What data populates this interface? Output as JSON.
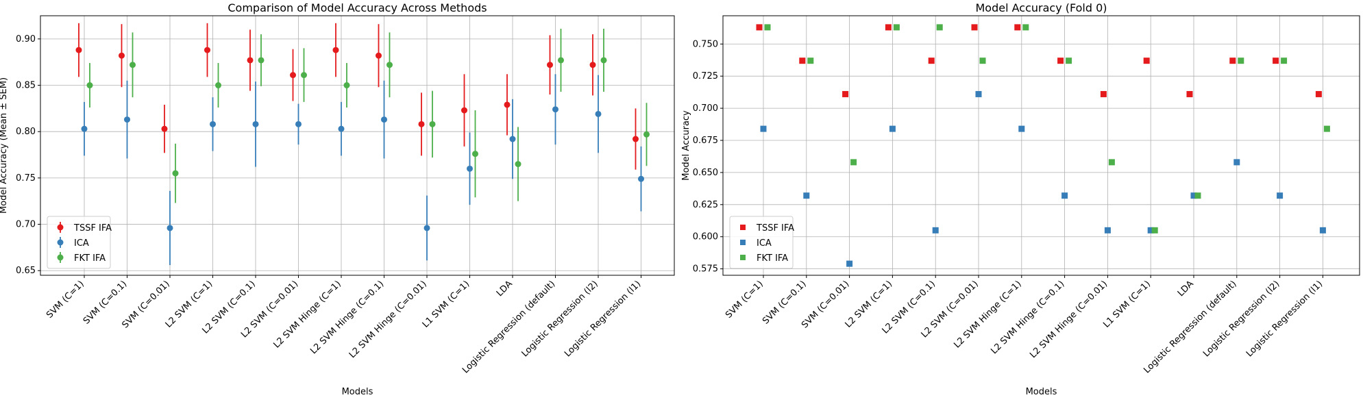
{
  "chart_data": [
    {
      "type": "scatter",
      "title": "Comparison of Model Accuracy Across Methods",
      "xlabel": "Models",
      "ylabel": "Model Accuracy (Mean ± SEM)",
      "ylim": [
        0.645,
        0.925
      ],
      "yticks": [
        0.65,
        0.7,
        0.75,
        0.8,
        0.85,
        0.9
      ],
      "grid": true,
      "legend_position": "lower-left",
      "marker": "circle",
      "error_bars": true,
      "categories": [
        "SVM (C=1)",
        "SVM (C=0.1)",
        "SVM (C=0.01)",
        "L2 SVM (C=1)",
        "L2 SVM (C=0.1)",
        "L2 SVM (C=0.01)",
        "L2 SVM Hinge (C=1)",
        "L2 SVM Hinge (C=0.1)",
        "L2 SVM Hinge (C=0.01)",
        "L1 SVM (C=1)",
        "LDA",
        "Logistic Regression (default)",
        "Logistic Regression (l2)",
        "Logistic Regression (l1)"
      ],
      "series": [
        {
          "name": "TSSF IFA",
          "color": "#e41a1c",
          "values": [
            0.888,
            0.882,
            0.803,
            0.888,
            0.877,
            0.861,
            0.888,
            0.882,
            0.808,
            0.823,
            0.829,
            0.872,
            0.872,
            0.792
          ],
          "errors": [
            0.029,
            0.034,
            0.026,
            0.029,
            0.033,
            0.028,
            0.029,
            0.034,
            0.034,
            0.039,
            0.033,
            0.032,
            0.033,
            0.033
          ]
        },
        {
          "name": "ICA",
          "color": "#377eb8",
          "values": [
            0.803,
            0.813,
            0.696,
            0.808,
            0.808,
            0.808,
            0.803,
            0.813,
            0.696,
            0.76,
            0.792,
            0.824,
            0.819,
            0.749
          ],
          "errors": [
            0.029,
            0.042,
            0.04,
            0.029,
            0.046,
            0.022,
            0.029,
            0.042,
            0.035,
            0.039,
            0.043,
            0.038,
            0.042,
            0.035
          ]
        },
        {
          "name": "FKT IFA",
          "color": "#4daf4a",
          "values": [
            0.85,
            0.872,
            0.755,
            0.85,
            0.877,
            0.861,
            0.85,
            0.872,
            0.808,
            0.776,
            0.765,
            0.877,
            0.877,
            0.797
          ],
          "errors": [
            0.024,
            0.035,
            0.032,
            0.024,
            0.028,
            0.029,
            0.024,
            0.035,
            0.036,
            0.047,
            0.04,
            0.034,
            0.034,
            0.034
          ]
        }
      ]
    },
    {
      "type": "scatter",
      "title": "Model Accuracy (Fold 0)",
      "xlabel": "Models",
      "ylabel": "Model Accuracy",
      "ylim": [
        0.57,
        0.772
      ],
      "yticks": [
        0.575,
        0.6,
        0.625,
        0.65,
        0.675,
        0.7,
        0.725,
        0.75
      ],
      "grid": true,
      "legend_position": "lower-left",
      "marker": "square",
      "error_bars": false,
      "categories": [
        "SVM (C=1)",
        "SVM (C=0.1)",
        "SVM (C=0.01)",
        "L2 SVM (C=1)",
        "L2 SVM (C=0.1)",
        "L2 SVM (C=0.01)",
        "L2 SVM Hinge (C=1)",
        "L2 SVM Hinge (C=0.1)",
        "L2 SVM Hinge (C=0.01)",
        "L1 SVM (C=1)",
        "LDA",
        "Logistic Regression (default)",
        "Logistic Regression (l2)",
        "Logistic Regression (l1)"
      ],
      "series": [
        {
          "name": "TSSF IFA",
          "color": "#e41a1c",
          "values": [
            0.763,
            0.737,
            0.711,
            0.763,
            0.737,
            0.763,
            0.763,
            0.737,
            0.711,
            0.737,
            0.711,
            0.737,
            0.737,
            0.711
          ]
        },
        {
          "name": "ICA",
          "color": "#377eb8",
          "values": [
            0.684,
            0.632,
            0.579,
            0.684,
            0.605,
            0.711,
            0.684,
            0.632,
            0.605,
            0.605,
            0.632,
            0.658,
            0.632,
            0.605
          ]
        },
        {
          "name": "FKT IFA",
          "color": "#4daf4a",
          "values": [
            0.763,
            0.737,
            0.658,
            0.763,
            0.763,
            0.737,
            0.763,
            0.737,
            0.658,
            0.605,
            0.632,
            0.737,
            0.737,
            0.684
          ]
        }
      ]
    }
  ]
}
